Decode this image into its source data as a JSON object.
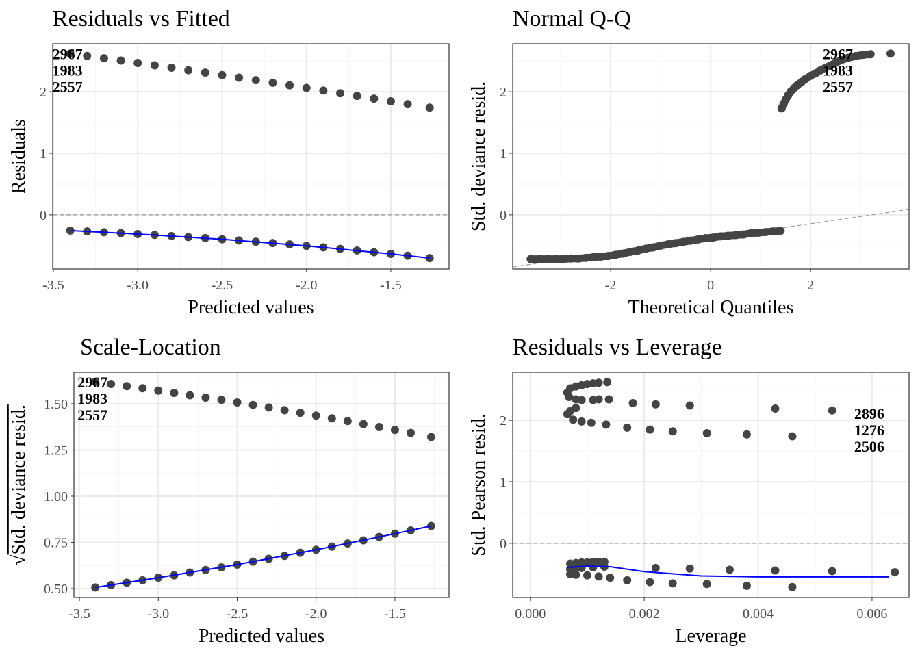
{
  "colors": {
    "points": "#444444",
    "smooth": "#0000ff",
    "reference": "#999999",
    "grid_major": "#ebebeb",
    "grid_minor": "#f5f5f5",
    "border": "#333333"
  },
  "chart_data": [
    {
      "id": "rvf",
      "type": "scatter",
      "title": "Residuals vs Fitted",
      "xlabel": "Predicted values",
      "ylabel": "Residuals",
      "xlim": [
        -3.504,
        -1.155
      ],
      "ylim": [
        -0.88,
        2.78
      ],
      "xticks": [
        -3.5,
        -3.0,
        -2.5,
        -2.0,
        -1.5
      ],
      "xtick_labels": [
        "-3.5",
        "-3.0",
        "-2.5",
        "-2.0",
        "-1.5"
      ],
      "yticks": [
        0,
        1,
        2
      ],
      "ytick_labels": [
        "0",
        "1",
        "2"
      ],
      "grid": true,
      "hline": 0,
      "x": [
        -3.4,
        -3.3,
        -3.2,
        -3.1,
        -3.0,
        -2.9,
        -2.8,
        -2.7,
        -2.6,
        -2.5,
        -2.4,
        -2.3,
        -2.2,
        -2.1,
        -2.0,
        -1.9,
        -1.8,
        -1.7,
        -1.6,
        -1.5,
        -1.4,
        -1.27
      ],
      "series": [
        {
          "values": [
            2.62,
            2.583,
            2.545,
            2.508,
            2.469,
            2.43,
            2.391,
            2.351,
            2.312,
            2.271,
            2.23,
            2.189,
            2.147,
            2.105,
            2.063,
            2.02,
            1.976,
            1.933,
            1.889,
            1.845,
            1.8,
            1.742
          ]
        },
        {
          "values": [
            -0.256,
            -0.269,
            -0.283,
            -0.297,
            -0.312,
            -0.327,
            -0.344,
            -0.361,
            -0.378,
            -0.397,
            -0.417,
            -0.437,
            -0.459,
            -0.481,
            -0.504,
            -0.528,
            -0.553,
            -0.579,
            -0.607,
            -0.635,
            -0.664,
            -0.704
          ]
        }
      ],
      "smooth": {
        "x": [
          -3.4,
          -3.0,
          -2.5,
          -2.0,
          -1.5,
          -1.27
        ],
        "y": [
          -0.256,
          -0.312,
          -0.397,
          -0.504,
          -0.635,
          -0.704
        ]
      },
      "point_labels": [
        {
          "x": -3.4,
          "y": 2.62,
          "texts": [
            "2967",
            "1983",
            "2557"
          ]
        }
      ]
    },
    {
      "id": "qq",
      "type": "scatter",
      "title": "Normal Q-Q",
      "xlabel": "Theoretical Quantiles",
      "ylabel": "Std. deviance resid.",
      "xlim": [
        -3.96,
        3.97
      ],
      "ylim": [
        -0.88,
        2.78
      ],
      "xticks": [
        -2,
        0,
        2
      ],
      "xtick_labels": [
        "-2",
        "0",
        "2"
      ],
      "yticks": [
        0,
        1,
        2
      ],
      "ytick_labels": [
        "0",
        "1",
        "2"
      ],
      "grid": true,
      "reference_line": {
        "slope": 0.118,
        "intercept": -0.38
      },
      "points": {
        "x": [
          -3.6,
          -3.4,
          -3.25,
          -3.1,
          -2.95,
          -2.8,
          -2.65,
          -2.5,
          -2.35,
          -2.2,
          -2.05,
          -1.9,
          -1.75,
          -1.6,
          -1.45,
          -1.3,
          -1.15,
          -1.0,
          -0.85,
          -0.7,
          -0.55,
          -0.4,
          -0.25,
          -0.1,
          0.05,
          0.2,
          0.35,
          0.5,
          0.65,
          0.8,
          0.95,
          1.1,
          1.25,
          1.4,
          1.42,
          1.46,
          1.5,
          1.55,
          1.6,
          1.67,
          1.74,
          1.82,
          1.9,
          2.0,
          2.1,
          2.2,
          2.3,
          2.4,
          2.5,
          2.6,
          2.75,
          2.9,
          3.05,
          3.2,
          3.6
        ],
        "y": [
          -0.72,
          -0.72,
          -0.72,
          -0.72,
          -0.72,
          -0.71,
          -0.71,
          -0.7,
          -0.69,
          -0.68,
          -0.67,
          -0.65,
          -0.63,
          -0.6,
          -0.58,
          -0.55,
          -0.53,
          -0.5,
          -0.48,
          -0.46,
          -0.44,
          -0.42,
          -0.4,
          -0.38,
          -0.37,
          -0.35,
          -0.34,
          -0.33,
          -0.32,
          -0.3,
          -0.29,
          -0.28,
          -0.27,
          -0.26,
          1.73,
          1.8,
          1.87,
          1.94,
          2.0,
          2.06,
          2.11,
          2.16,
          2.21,
          2.26,
          2.3,
          2.35,
          2.39,
          2.43,
          2.47,
          2.51,
          2.55,
          2.58,
          2.6,
          2.61,
          2.62
        ]
      },
      "point_labels": [
        {
          "x": 2.6,
          "y": 2.62,
          "texts": [
            "2967",
            "1983",
            "2557"
          ]
        }
      ]
    },
    {
      "id": "sl",
      "type": "scatter",
      "title": "Scale-Location",
      "xlabel": "Predicted values",
      "ylabel_root": "√",
      "ylabel": "Std. deviance resid.",
      "xlim": [
        -3.535,
        -1.157
      ],
      "ylim": [
        0.452,
        1.67
      ],
      "xticks": [
        -3.5,
        -3.0,
        -2.5,
        -2.0,
        -1.5
      ],
      "xtick_labels": [
        "-3.5",
        "-3.0",
        "-2.5",
        "-2.0",
        "-1.5"
      ],
      "yticks": [
        0.5,
        0.75,
        1.0,
        1.25,
        1.5
      ],
      "ytick_labels": [
        "0.50",
        "0.75",
        "1.00",
        "1.25",
        "1.50"
      ],
      "grid": true,
      "x": [
        -3.4,
        -3.3,
        -3.2,
        -3.1,
        -3.0,
        -2.9,
        -2.8,
        -2.7,
        -2.6,
        -2.5,
        -2.4,
        -2.3,
        -2.2,
        -2.1,
        -2.0,
        -1.9,
        -1.8,
        -1.7,
        -1.6,
        -1.5,
        -1.4,
        -1.27
      ],
      "series": [
        {
          "values": [
            1.619,
            1.607,
            1.595,
            1.584,
            1.571,
            1.559,
            1.546,
            1.533,
            1.521,
            1.507,
            1.493,
            1.48,
            1.465,
            1.451,
            1.436,
            1.421,
            1.406,
            1.39,
            1.374,
            1.358,
            1.342,
            1.32
          ]
        },
        {
          "values": [
            0.506,
            0.519,
            0.532,
            0.545,
            0.559,
            0.572,
            0.587,
            0.601,
            0.615,
            0.63,
            0.646,
            0.661,
            0.677,
            0.694,
            0.71,
            0.727,
            0.744,
            0.761,
            0.779,
            0.797,
            0.815,
            0.839
          ]
        }
      ],
      "smooth": {
        "x": [
          -3.4,
          -3.0,
          -2.5,
          -2.0,
          -1.5,
          -1.27
        ],
        "y": [
          0.506,
          0.559,
          0.63,
          0.71,
          0.797,
          0.839
        ]
      },
      "point_labels": [
        {
          "x": -3.4,
          "y": 1.619,
          "texts": [
            "2967",
            "1983",
            "2557"
          ]
        }
      ]
    },
    {
      "id": "rvl",
      "type": "scatter",
      "title": "Residuals vs Leverage",
      "xlabel": "Leverage",
      "ylabel": "Std. Pearson resid.",
      "xlim": [
        -0.00031,
        0.00665
      ],
      "ylim": [
        -0.88,
        2.78
      ],
      "xticks": [
        0,
        0.002,
        0.004,
        0.006
      ],
      "xtick_labels": [
        "0.000",
        "0.002",
        "0.004",
        "0.006"
      ],
      "yticks": [
        0,
        1,
        2
      ],
      "ytick_labels": [
        "0",
        "1",
        "2"
      ],
      "grid": true,
      "hline": 0,
      "points": {
        "x": [
          0.00065,
          0.0007,
          0.0008,
          0.0009,
          0.001,
          0.0011,
          0.0012,
          0.00135,
          0.00068,
          0.0008,
          0.0009,
          0.0011,
          0.0012,
          0.00138,
          0.00065,
          0.0007,
          0.0008,
          0.00075,
          0.0009,
          0.00107,
          0.00133,
          0.0018,
          0.0022,
          0.0028,
          0.0043,
          0.0053,
          0.0017,
          0.0021,
          0.0025,
          0.0031,
          0.0038,
          0.0046,
          0.0007,
          0.0008,
          0.0009,
          0.001,
          0.0011,
          0.0012,
          0.0013,
          0.0007,
          0.0008,
          0.0009,
          0.0011,
          0.0013,
          0.0007,
          0.0008,
          0.001,
          0.0012,
          0.0014,
          0.0022,
          0.0028,
          0.0035,
          0.0043,
          0.0053,
          0.0064,
          0.0017,
          0.0021,
          0.0025,
          0.0031,
          0.0038,
          0.0046
        ],
        "y": [
          2.45,
          2.52,
          2.55,
          2.57,
          2.59,
          2.6,
          2.61,
          2.62,
          2.38,
          2.34,
          2.33,
          2.33,
          2.34,
          2.34,
          2.1,
          2.15,
          2.2,
          2.01,
          1.98,
          1.96,
          1.93,
          2.28,
          2.26,
          2.24,
          2.19,
          2.16,
          1.88,
          1.85,
          1.82,
          1.79,
          1.77,
          1.74,
          -0.33,
          -0.32,
          -0.31,
          -0.31,
          -0.3,
          -0.3,
          -0.3,
          -0.42,
          -0.41,
          -0.4,
          -0.39,
          -0.38,
          -0.5,
          -0.51,
          -0.52,
          -0.54,
          -0.56,
          -0.4,
          -0.41,
          -0.43,
          -0.44,
          -0.45,
          -0.47,
          -0.6,
          -0.63,
          -0.65,
          -0.66,
          -0.69,
          -0.71
        ]
      },
      "smooth": {
        "x": [
          0.00065,
          0.001,
          0.0014,
          0.002,
          0.003,
          0.004,
          0.005,
          0.0063
        ],
        "y": [
          -0.39,
          -0.37,
          -0.38,
          -0.46,
          -0.53,
          -0.545,
          -0.545,
          -0.545
        ]
      },
      "point_labels": [
        {
          "x": 0.006,
          "y": 2.11,
          "texts": [
            "2896",
            "1276",
            "2506"
          ]
        }
      ]
    }
  ]
}
